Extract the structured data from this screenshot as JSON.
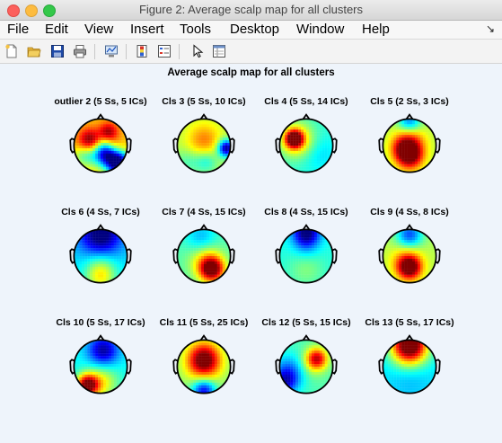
{
  "window": {
    "title": "Figure 2: Average scalp map for all clusters"
  },
  "menubar": {
    "items": [
      "File",
      "Edit",
      "View",
      "Insert",
      "Tools",
      "Desktop",
      "Window",
      "Help"
    ],
    "dock_glyph": "↘"
  },
  "toolbar": {
    "icons": [
      "new-figure-icon",
      "open-file-icon",
      "save-icon",
      "print-icon",
      "link-plot-icon",
      "colorbar-icon",
      "legend-icon",
      "pointer-icon",
      "property-inspector-icon"
    ]
  },
  "figure": {
    "title": "Average scalp map for all clusters",
    "maps": [
      {
        "label": "outlier 2 (5 Ss, 5 ICs)",
        "pattern": "outlier"
      },
      {
        "label": "Cls 3 (5 Ss, 10 ICs)",
        "pattern": "cls3"
      },
      {
        "label": "Cls 4 (5 Ss, 14 ICs)",
        "pattern": "cls4"
      },
      {
        "label": "Cls 5 (2 Ss, 3 ICs)",
        "pattern": "cls5"
      },
      {
        "label": "Cls 6 (4 Ss, 7 ICs)",
        "pattern": "cls6"
      },
      {
        "label": "Cls 7 (4 Ss, 15 ICs)",
        "pattern": "cls7"
      },
      {
        "label": "Cls 8 (4 Ss, 15 ICs)",
        "pattern": "cls8"
      },
      {
        "label": "Cls 9 (4 Ss, 8 ICs)",
        "pattern": "cls9"
      },
      {
        "label": "Cls 10 (5 Ss, 17 ICs)",
        "pattern": "cls10"
      },
      {
        "label": "Cls 11 (5 Ss, 25 ICs)",
        "pattern": "cls11"
      },
      {
        "label": "Cls 12 (5 Ss, 15 ICs)",
        "pattern": "cls12"
      },
      {
        "label": "Cls 13 (5 Ss, 17 ICs)",
        "pattern": "cls13"
      }
    ]
  }
}
